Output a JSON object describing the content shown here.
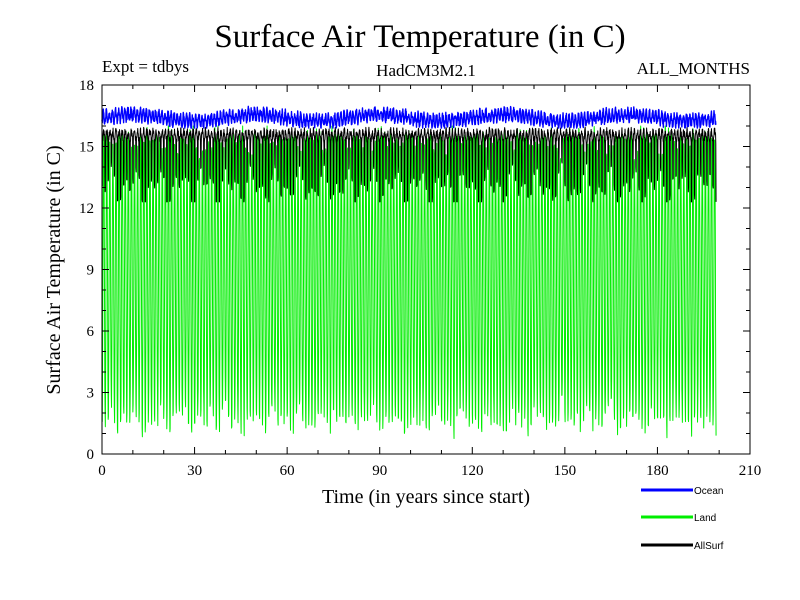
{
  "chart_data": {
    "type": "line",
    "title": "Surface Air Temperature (in C)",
    "subtitle_left": "Expt = tdbys",
    "subtitle_center": "HadCM3M2.1",
    "subtitle_right": "ALL_MONTHS",
    "xlabel": "Time (in years since start)",
    "ylabel": "Surface Air Temperature (in C)",
    "xlim": [
      0,
      210
    ],
    "ylim": [
      0,
      18
    ],
    "xticks": [
      "0",
      "30",
      "60",
      "90",
      "120",
      "150",
      "180",
      "210"
    ],
    "yticks": [
      "0",
      "3",
      "6",
      "9",
      "12",
      "15",
      "18"
    ],
    "x_range_data": [
      0,
      199
    ],
    "samples_per_year": 12,
    "series": [
      {
        "name": "Ocean",
        "color": "#0000ff",
        "approx_min": 15.9,
        "approx_max": 17.0,
        "approx_mean": 16.4
      },
      {
        "name": "Land",
        "color": "#00ee00",
        "approx_min": 0.5,
        "approx_max": 16.0,
        "approx_mean": 8.5
      },
      {
        "name": "AllSurf",
        "color": "#000000",
        "approx_min": 12.3,
        "approx_max": 16.4,
        "approx_mean": 15.2
      }
    ],
    "legend_placement": "bottom-right",
    "grid": false
  }
}
